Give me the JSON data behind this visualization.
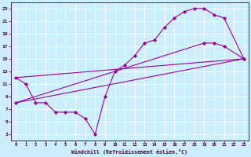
{
  "background_color": "#cceeff",
  "grid_color": "#ffffff",
  "line_color": "#990099",
  "xlabel": "Windchill (Refroidissement éolien,°C)",
  "xlim": [
    -0.5,
    23.5
  ],
  "ylim": [
    2,
    24
  ],
  "xticks": [
    0,
    1,
    2,
    3,
    4,
    5,
    6,
    7,
    8,
    9,
    10,
    11,
    12,
    13,
    14,
    15,
    16,
    17,
    18,
    19,
    20,
    21,
    22,
    23
  ],
  "yticks": [
    3,
    5,
    7,
    9,
    11,
    13,
    15,
    17,
    19,
    21,
    23
  ],
  "zigzag_x": [
    0,
    1,
    2,
    3,
    4,
    5,
    6,
    7,
    8,
    9,
    10,
    11,
    12,
    13,
    14,
    15,
    16,
    17,
    18,
    19,
    20,
    21,
    23
  ],
  "zigzag_y": [
    12,
    11,
    8,
    8,
    6.5,
    6.5,
    6.5,
    5.5,
    3,
    9,
    13,
    14,
    15.5,
    17.5,
    18,
    20,
    21.5,
    22.5,
    23,
    23,
    22,
    21.5,
    15
  ],
  "upper_line_x": [
    0,
    23
  ],
  "upper_line_y": [
    12,
    15
  ],
  "lower_line_x": [
    0,
    19,
    20,
    21,
    23
  ],
  "lower_line_y": [
    8,
    17.5,
    17.5,
    17,
    15
  ],
  "lower_line2_x": [
    0,
    23
  ],
  "lower_line2_y": [
    8,
    15
  ]
}
